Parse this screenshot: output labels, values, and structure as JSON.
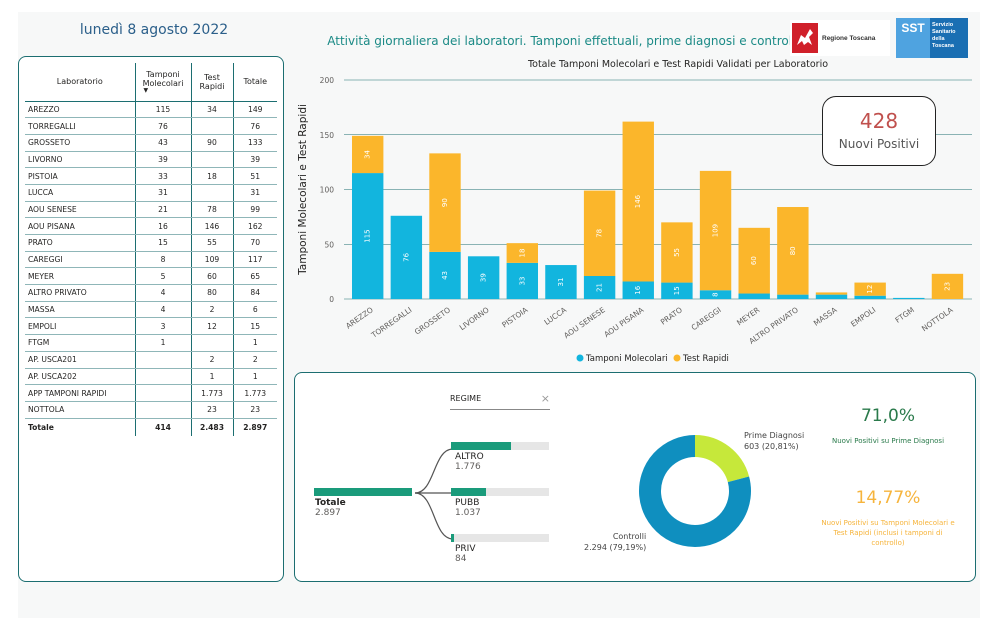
{
  "header": {
    "date": "lunedì 8 agosto 2022",
    "subtitle": "Attività giornaliera dei laboratori. Tamponi effettuali, prime diagnosi e controlli",
    "logo_regione": "Regione Toscana",
    "logo_sst_short": "SST",
    "logo_sst_text": "Servizio Sanitario della Toscana"
  },
  "table": {
    "headers": [
      "Laboratorio",
      "Tamponi Molecolari",
      "Test Rapidi",
      "Totale"
    ],
    "rows": [
      [
        "AREZZO",
        "115",
        "34",
        "149"
      ],
      [
        "TORREGALLI",
        "76",
        "",
        "76"
      ],
      [
        "GROSSETO",
        "43",
        "90",
        "133"
      ],
      [
        "LIVORNO",
        "39",
        "",
        "39"
      ],
      [
        "PISTOIA",
        "33",
        "18",
        "51"
      ],
      [
        "LUCCA",
        "31",
        "",
        "31"
      ],
      [
        "AOU SENESE",
        "21",
        "78",
        "99"
      ],
      [
        "AOU PISANA",
        "16",
        "146",
        "162"
      ],
      [
        "PRATO",
        "15",
        "55",
        "70"
      ],
      [
        "CAREGGI",
        "8",
        "109",
        "117"
      ],
      [
        "MEYER",
        "5",
        "60",
        "65"
      ],
      [
        "ALTRO PRIVATO",
        "4",
        "80",
        "84"
      ],
      [
        "MASSA",
        "4",
        "2",
        "6"
      ],
      [
        "EMPOLI",
        "3",
        "12",
        "15"
      ],
      [
        "FTGM",
        "1",
        "",
        "1"
      ],
      [
        "AP. USCA201",
        "",
        "2",
        "2"
      ],
      [
        "AP. USCA202",
        "",
        "1",
        "1"
      ],
      [
        "APP TAMPONI RAPIDI",
        "",
        "1.773",
        "1.773"
      ],
      [
        "NOTTOLA",
        "",
        "23",
        "23"
      ]
    ],
    "total": [
      "Totale",
      "414",
      "2.483",
      "2.897"
    ]
  },
  "chart_data": {
    "type": "bar",
    "title": "Totale Tamponi Molecolari e Test Rapidi Validati per Laboratorio",
    "ylabel": "Tamponi Molecolari e Test Rapidi",
    "xlabel": "",
    "ylim": [
      0,
      200
    ],
    "yticks": [
      0,
      50,
      100,
      150,
      200
    ],
    "stacked": true,
    "legend": "bottom",
    "categories": [
      "AREZZO",
      "TORREGALLI",
      "GROSSETO",
      "LIVORNO",
      "PISTOIA",
      "LUCCA",
      "AOU SENESE",
      "AOU PISANA",
      "PRATO",
      "CAREGGI",
      "MEYER",
      "ALTRO PRIVATO",
      "MASSA",
      "EMPOLI",
      "FTGM",
      "NOTTOLA"
    ],
    "series": [
      {
        "name": "Tamponi Molecolari",
        "color": "#12b5de",
        "values": [
          115,
          76,
          43,
          39,
          33,
          31,
          21,
          16,
          15,
          8,
          5,
          4,
          4,
          3,
          1,
          0
        ]
      },
      {
        "name": "Test Rapidi",
        "color": "#fbb62b",
        "values": [
          34,
          0,
          90,
          0,
          18,
          0,
          78,
          146,
          55,
          109,
          60,
          80,
          2,
          12,
          0,
          23
        ]
      }
    ]
  },
  "kpi": {
    "value": "428",
    "label": "Nuovi Positivi"
  },
  "decomposition": {
    "header": "REGIME",
    "root": {
      "name": "Totale",
      "value": "2.897",
      "fraction": 1.0
    },
    "children": [
      {
        "name": "ALTRO",
        "value": "1.776",
        "fraction": 0.613
      },
      {
        "name": "PUBB",
        "value": "1.037",
        "fraction": 0.358
      },
      {
        "name": "PRIV",
        "value": "84",
        "fraction": 0.029
      }
    ]
  },
  "donut": {
    "slices": [
      {
        "name": "Prime Diagnosi",
        "label": "603 (20,81%)",
        "value": 603,
        "color": "#c6e83a"
      },
      {
        "name": "Controlli",
        "label": "2.294 (79,19%)",
        "value": 2294,
        "color": "#0f8fbf"
      }
    ]
  },
  "stats": {
    "pct1": "71,0%",
    "pct1_desc": "Nuovi Positivi su Prime Diagnosi",
    "pct2": "14,77%",
    "pct2_desc": "Nuovi Positivi su Tamponi Molecolari e Test Rapidi (inclusi i tamponi di controllo)"
  },
  "colors": {
    "accent": "#1c6e71",
    "molecolari": "#12b5de",
    "rapidi": "#fbb62b",
    "positivi": "#c0504d"
  }
}
